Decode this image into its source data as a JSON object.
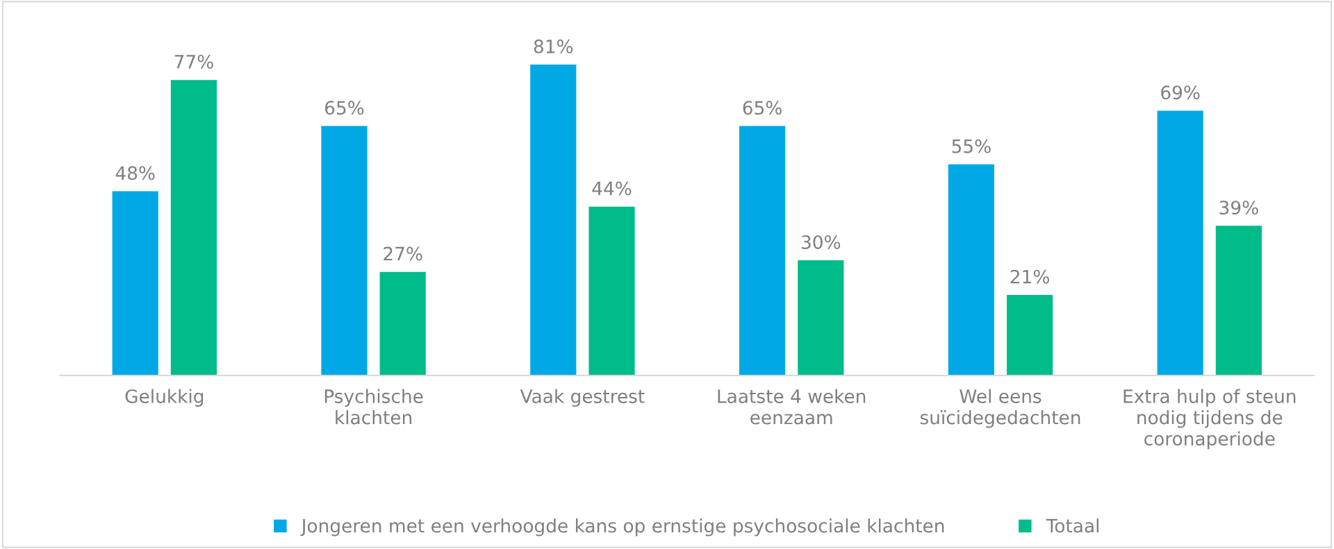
{
  "chart_data": {
    "type": "bar",
    "categories": [
      "Gelukkig",
      "Psychische\nklachten",
      "Vaak gestrest",
      "Laatste 4 weken\neenzaam",
      "Wel eens\nsuïcidegedachten",
      "Extra hulp of steun\nnodig tijdens de\ncoronaperiode"
    ],
    "series": [
      {
        "name": "Jongeren met een verhoogde kans op ernstige psychosociale klachten",
        "color": "#00a9e6",
        "values": [
          48,
          65,
          81,
          65,
          55,
          69
        ],
        "value_labels": [
          "48%",
          "65%",
          "81%",
          "65%",
          "55%",
          "69%"
        ]
      },
      {
        "name": "Totaal",
        "color": "#00bc8a",
        "values": [
          77,
          27,
          44,
          30,
          21,
          39
        ],
        "value_labels": [
          "77%",
          "27%",
          "44%",
          "30%",
          "21%",
          "39%"
        ]
      }
    ],
    "legend": "bottom",
    "grid": false
  }
}
